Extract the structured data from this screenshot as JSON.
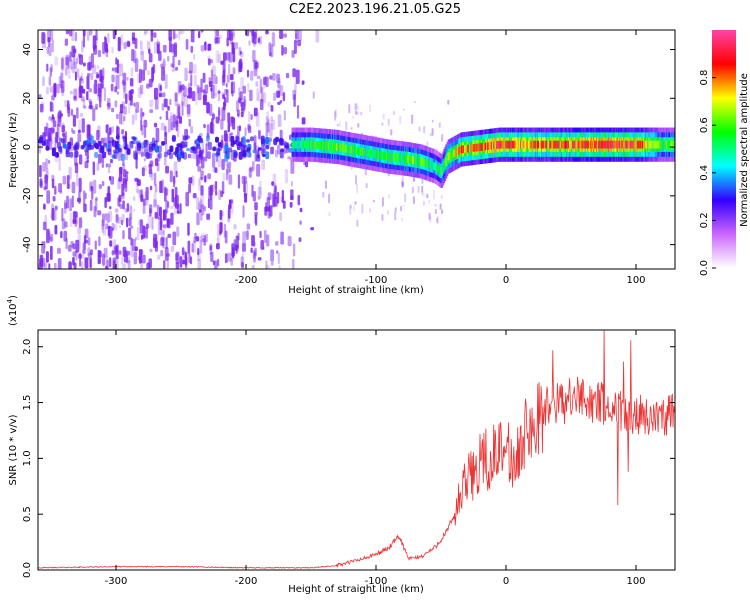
{
  "title": "C2E2.2023.196.21.05.G25",
  "colors": {
    "snr_line": "#ee3333",
    "spectrogram_noise": "#7a22ee",
    "colorbar_stops": [
      "#ffffff",
      "#cc66ff",
      "#3300ff",
      "#00ffff",
      "#00ff00",
      "#ffff00",
      "#ff0000",
      "#ff44aa"
    ]
  },
  "chart_data": [
    {
      "type": "heatmap",
      "xlabel": "Height of straight line (km)",
      "ylabel": "Frequency (Hz)",
      "xlim": [
        -360,
        130
      ],
      "ylim": [
        -50,
        48
      ],
      "x_ticks": [
        -300,
        -200,
        -100,
        0,
        100
      ],
      "x_tick_labels": [
        "-300",
        "-200",
        "-100",
        "0",
        "100"
      ],
      "y_ticks": [
        -40,
        -20,
        0,
        20,
        40
      ],
      "y_tick_labels": [
        "-40",
        "-20",
        "0",
        "20",
        "40"
      ],
      "colorbar": {
        "label": "Normalized spectral amplitude",
        "range": [
          0,
          1
        ],
        "ticks": [
          0.0,
          0.2,
          0.4,
          0.6,
          0.8
        ],
        "tick_labels": [
          "0.0",
          "0.2",
          "0.4",
          "0.6",
          "0.8"
        ]
      },
      "noise_region_x": [
        -360,
        -145
      ],
      "signal_ridge": {
        "x": [
          -165,
          -150,
          -130,
          -110,
          -90,
          -75,
          -65,
          -55,
          -50,
          -45,
          -35,
          -20,
          -5,
          0,
          20,
          40,
          60,
          80,
          100,
          120,
          130
        ],
        "y": [
          1,
          1,
          0,
          -2,
          -4,
          -5,
          -6,
          -8,
          -10,
          -4,
          -1,
          0,
          1,
          1,
          1,
          1,
          1,
          1,
          1,
          1,
          1
        ],
        "amplitude": [
          0.5,
          0.55,
          0.6,
          0.55,
          0.55,
          0.6,
          0.6,
          0.5,
          0.55,
          0.65,
          0.75,
          0.8,
          0.85,
          0.85,
          0.8,
          0.8,
          0.85,
          0.9,
          0.85,
          0.6,
          0.6
        ]
      }
    },
    {
      "type": "line",
      "xlabel": "Height of straight line (km)",
      "ylabel": "SNR (10 * v/v)",
      "y_scale_label": "(x10",
      "y_scale_exp": "4",
      "y_scale_close": ")",
      "xlim": [
        -360,
        130
      ],
      "ylim": [
        0,
        2.15
      ],
      "x_ticks": [
        -300,
        -200,
        -100,
        0,
        100
      ],
      "x_tick_labels": [
        "-300",
        "-200",
        "-100",
        "0",
        "100"
      ],
      "y_ticks": [
        0.0,
        0.5,
        1.0,
        1.5,
        2.0
      ],
      "y_tick_labels": [
        "0.0",
        "0.5",
        "1.0",
        "1.5",
        "2.0"
      ],
      "series": [
        {
          "x": [
            -360,
            -300,
            -250,
            -200,
            -150,
            -130,
            -110,
            -100,
            -90,
            -82,
            -75,
            -65,
            -55,
            -45,
            -38,
            -30,
            -20,
            -10,
            0,
            10,
            20,
            30,
            40,
            50,
            60,
            70,
            80,
            90,
            100,
            110,
            120,
            130
          ],
          "y": [
            0.02,
            0.03,
            0.03,
            0.02,
            0.02,
            0.04,
            0.1,
            0.14,
            0.2,
            0.3,
            0.1,
            0.12,
            0.2,
            0.35,
            0.55,
            0.8,
            0.95,
            1.05,
            1.0,
            1.1,
            1.3,
            1.45,
            1.5,
            1.52,
            1.55,
            1.5,
            1.45,
            1.42,
            1.4,
            1.38,
            1.38,
            1.4
          ]
        }
      ]
    }
  ]
}
